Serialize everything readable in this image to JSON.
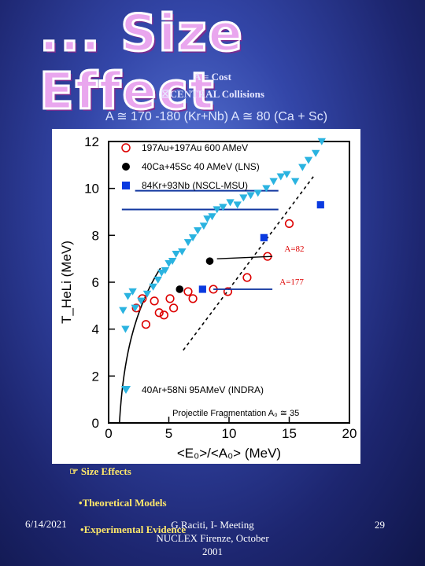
{
  "slide": {
    "title": "... Size Effect",
    "sub1": "A = Cost",
    "sub2": "CENTRAL Collisions",
    "compare_line": "A ≅ 170 -180 (Kr+Nb) A ≅ 80 (Ca + Sc)",
    "bullet1": "Size Effects",
    "bullet2": "Theoretical Models",
    "bullet3": "Experimental Evidence",
    "footer_date": "6/14/2021",
    "footer_center_1": "G.Raciti, I- Meeting",
    "footer_center_2": "NUCLEX Firenze, October",
    "footer_center_3": "2001",
    "footer_page": "29"
  },
  "chart_data": {
    "type": "scatter",
    "xlabel": "<E₀>/<A₀> (MeV)",
    "ylabel": "T_HeLi (MeV)",
    "xlim": [
      0,
      20
    ],
    "ylim": [
      0,
      12
    ],
    "xticks": [
      "0",
      "5",
      "10",
      "15",
      "20"
    ],
    "yticks": [
      "0",
      "2",
      "4",
      "6",
      "8",
      "10",
      "12"
    ],
    "legend": [
      {
        "label": "197Au+197Au 600 AMeV",
        "marker": "open-circle"
      },
      {
        "label": "40Ca+45Sc 40 AMeV (LNS)",
        "marker": "filled-circle"
      },
      {
        "label": "84Kr+93Nb (NSCL-MSU)",
        "marker": "filled-square"
      },
      {
        "label": "40Ar+58Ni 95AMeV (INDRA)",
        "marker": "filled-triangle-down"
      }
    ],
    "annotations": [
      "A=82",
      "A=177",
      "Projectile Fragmentation A₀ ≅ 35"
    ],
    "series": [
      {
        "name": "197Au+197Au 600 AMeV",
        "points": [
          [
            2.3,
            4.9
          ],
          [
            2.8,
            5.3
          ],
          [
            3.1,
            4.2
          ],
          [
            3.8,
            5.2
          ],
          [
            4.2,
            4.7
          ],
          [
            4.6,
            4.6
          ],
          [
            5.1,
            5.3
          ],
          [
            5.4,
            4.9
          ],
          [
            6.6,
            5.6
          ],
          [
            7.0,
            5.3
          ],
          [
            8.7,
            5.7
          ],
          [
            9.9,
            5.6
          ],
          [
            11.5,
            6.2
          ],
          [
            13.2,
            7.1
          ],
          [
            15.0,
            8.5
          ]
        ]
      },
      {
        "name": "40Ca+45Sc 40 AMeV (LNS)",
        "points": [
          [
            5.9,
            5.7
          ],
          [
            8.4,
            6.9
          ]
        ]
      },
      {
        "name": "84Kr+93Nb (NSCL-MSU)",
        "points": [
          [
            7.8,
            5.7
          ],
          [
            12.9,
            7.9
          ],
          [
            17.6,
            9.3
          ]
        ]
      },
      {
        "name": "40Ar+58Ni 95AMeV (INDRA)",
        "points": [
          [
            1.4,
            4.0
          ],
          [
            2.2,
            4.9
          ],
          [
            2.7,
            5.2
          ],
          [
            3.2,
            5.5
          ],
          [
            3.7,
            5.8
          ],
          [
            4.1,
            6.1
          ],
          [
            4.4,
            6.4
          ],
          [
            4.7,
            6.5
          ],
          [
            5.0,
            6.8
          ],
          [
            5.3,
            6.9
          ],
          [
            5.6,
            7.2
          ],
          [
            6.1,
            7.3
          ],
          [
            6.6,
            7.7
          ],
          [
            7.0,
            7.9
          ],
          [
            7.4,
            8.2
          ],
          [
            7.9,
            8.4
          ],
          [
            8.2,
            8.7
          ],
          [
            8.6,
            8.8
          ],
          [
            9.0,
            9.1
          ],
          [
            9.5,
            9.2
          ],
          [
            10.1,
            9.4
          ],
          [
            10.7,
            9.3
          ],
          [
            11.2,
            9.6
          ],
          [
            11.8,
            9.7
          ],
          [
            12.4,
            9.8
          ],
          [
            13.1,
            10.0
          ],
          [
            13.7,
            10.3
          ],
          [
            14.3,
            10.5
          ],
          [
            14.8,
            10.6
          ],
          [
            15.5,
            10.3
          ],
          [
            16.1,
            10.9
          ],
          [
            16.6,
            11.2
          ],
          [
            17.2,
            11.5
          ],
          [
            17.7,
            12.0
          ],
          [
            1.2,
            4.8
          ],
          [
            1.6,
            5.4
          ],
          [
            2.0,
            5.6
          ]
        ]
      }
    ]
  }
}
